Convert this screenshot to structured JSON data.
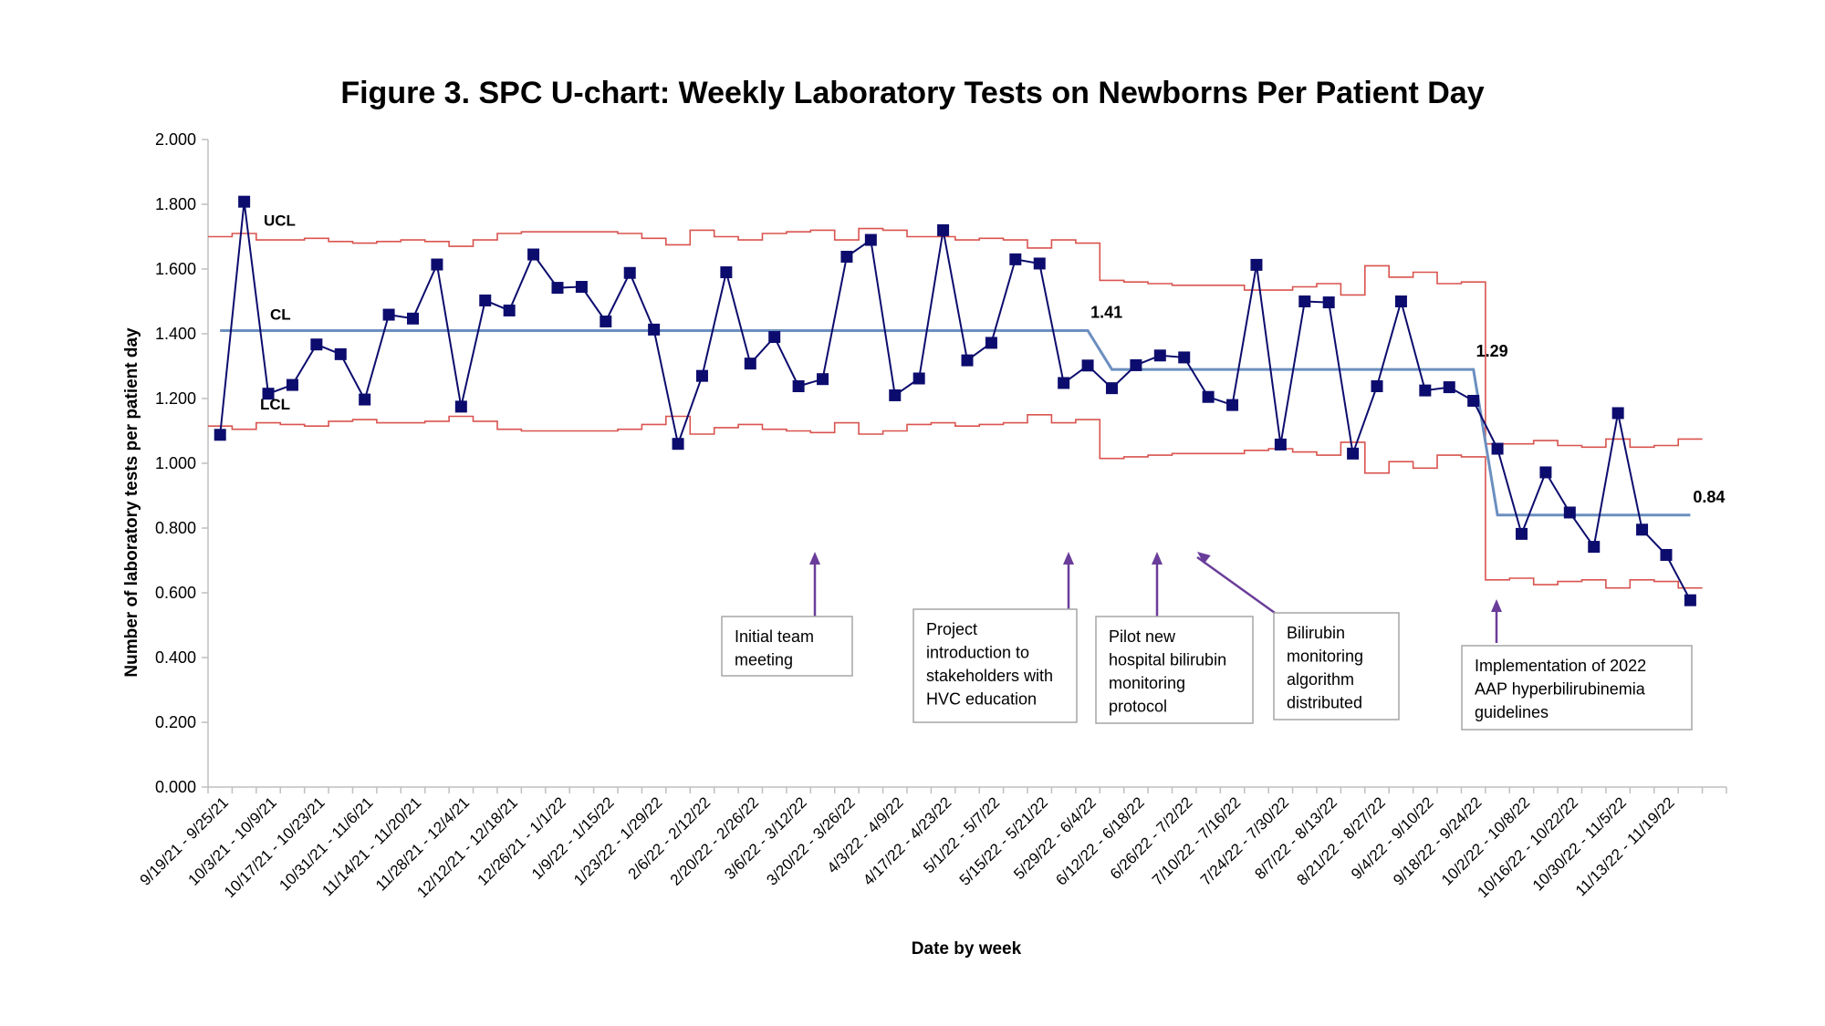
{
  "chart_data": {
    "type": "line",
    "title": "Figure 3. SPC U-chart: Weekly Laboratory Tests on Newborns Per Patient Day",
    "xlabel": "Date by week",
    "ylabel": "Number of laboratory tests per patient day",
    "ylim": [
      0,
      2
    ],
    "yticks": [
      "0.000",
      "0.200",
      "0.400",
      "0.600",
      "0.800",
      "1.000",
      "1.200",
      "1.400",
      "1.600",
      "1.800",
      "2.000"
    ],
    "week_count": 62,
    "x_tick_labels": [
      "9/19/21 - 9/25/21",
      "10/3/21 - 10/9/21",
      "10/17/21 - 10/23/21",
      "10/31/21 - 11/6/21",
      "11/14/21 - 11/20/21",
      "11/28/21 - 12/4/21",
      "12/12/21 - 12/18/21",
      "12/26/21 - 1/1/22",
      "1/9/22 - 1/15/22",
      "1/23/22 - 1/29/22",
      "2/6/22 - 2/12/22",
      "2/20/22 - 2/26/22",
      "3/6/22 - 3/12/22",
      "3/20/22 - 3/26/22",
      "4/3/22 - 4/9/22",
      "4/17/22 - 4/23/22",
      "5/1/22 - 5/7/22",
      "5/15/22 - 5/21/22",
      "5/29/22 - 6/4/22",
      "6/12/22 - 6/18/22",
      "6/26/22 - 7/2/22",
      "7/10/22 - 7/16/22",
      "7/24/22 - 7/30/22",
      "8/7/22 - 8/13/22",
      "8/21/22 - 8/27/22",
      "9/4/22 - 9/10/22",
      "9/18/22 - 9/24/22",
      "10/2/22 - 10/8/22",
      "10/16/22 - 10/22/22",
      "10/30/22 - 11/5/22",
      "11/13/22 - 11/19/22"
    ],
    "series": [
      {
        "name": "",
        "values": [
          1.088,
          1.808,
          1.215,
          1.242,
          1.367,
          1.337,
          1.197,
          1.459,
          1.447,
          1.614,
          1.175,
          1.503,
          1.472,
          1.645,
          1.542,
          1.545,
          1.438,
          1.588,
          1.413,
          1.06,
          1.27,
          1.59,
          1.308,
          1.39,
          1.238,
          1.26,
          1.638,
          1.69,
          1.21,
          1.262,
          1.72,
          1.318,
          1.372,
          1.63,
          1.617,
          1.248,
          1.302,
          1.232,
          1.303,
          1.333,
          1.327,
          1.205,
          1.18,
          1.613,
          1.058,
          1.5,
          1.497,
          1.03,
          1.238,
          1.5,
          1.225,
          1.235,
          1.193,
          1.045,
          0.782,
          0.972,
          0.848,
          0.742,
          1.155,
          0.795,
          0.717,
          0.577
        ],
        "color": "#0c0c6e"
      },
      {
        "name": "CL",
        "values": [
          1.41,
          1.41,
          1.41,
          1.41,
          1.41,
          1.41,
          1.41,
          1.41,
          1.41,
          1.41,
          1.41,
          1.41,
          1.41,
          1.41,
          1.41,
          1.41,
          1.41,
          1.41,
          1.41,
          1.41,
          1.41,
          1.41,
          1.41,
          1.41,
          1.41,
          1.41,
          1.41,
          1.41,
          1.41,
          1.41,
          1.41,
          1.41,
          1.41,
          1.41,
          1.41,
          1.41,
          1.41,
          1.29,
          1.29,
          1.29,
          1.29,
          1.29,
          1.29,
          1.29,
          1.29,
          1.29,
          1.29,
          1.29,
          1.29,
          1.29,
          1.29,
          1.29,
          1.29,
          0.84,
          0.84,
          0.84,
          0.84,
          0.84,
          0.84,
          0.84,
          0.84,
          0.84
        ],
        "color": "#6b8fbf"
      },
      {
        "name": "UCL",
        "values": [
          1.7,
          1.71,
          1.69,
          1.69,
          1.695,
          1.685,
          1.68,
          1.685,
          1.69,
          1.685,
          1.67,
          1.69,
          1.71,
          1.715,
          1.715,
          1.715,
          1.715,
          1.71,
          1.695,
          1.675,
          1.72,
          1.7,
          1.69,
          1.71,
          1.715,
          1.72,
          1.69,
          1.725,
          1.72,
          1.7,
          1.7,
          1.69,
          1.695,
          1.69,
          1.665,
          1.69,
          1.68,
          1.565,
          1.56,
          1.555,
          1.55,
          1.55,
          1.55,
          1.535,
          1.535,
          1.545,
          1.555,
          1.52,
          1.61,
          1.575,
          1.59,
          1.555,
          1.56,
          1.06,
          1.06,
          1.07,
          1.055,
          1.05,
          1.075,
          1.05,
          1.055,
          1.075
        ],
        "color": "#d9534f"
      },
      {
        "name": "LCL",
        "values": [
          1.115,
          1.105,
          1.125,
          1.12,
          1.115,
          1.13,
          1.135,
          1.125,
          1.125,
          1.13,
          1.145,
          1.13,
          1.105,
          1.1,
          1.1,
          1.1,
          1.1,
          1.105,
          1.12,
          1.145,
          1.09,
          1.11,
          1.12,
          1.105,
          1.1,
          1.095,
          1.125,
          1.09,
          1.1,
          1.12,
          1.125,
          1.115,
          1.12,
          1.125,
          1.15,
          1.125,
          1.135,
          1.015,
          1.02,
          1.025,
          1.03,
          1.03,
          1.03,
          1.04,
          1.045,
          1.035,
          1.025,
          1.065,
          0.97,
          1.005,
          0.985,
          1.025,
          1.02,
          0.64,
          0.645,
          0.625,
          0.635,
          0.64,
          0.615,
          0.64,
          0.635,
          0.615
        ],
        "color": "#d9534f"
      }
    ],
    "line_labels": {
      "ucl": "UCL",
      "cl": "CL",
      "lcl": "LCL"
    },
    "cl_value_labels": [
      {
        "text": "1.41",
        "week": 36,
        "value": 1.41
      },
      {
        "text": "1.29",
        "week": 52,
        "value": 1.29
      },
      {
        "text": "0.84",
        "week": 61,
        "value": 0.84
      }
    ],
    "annotations": [
      {
        "lines": [
          "Initial team",
          "meeting"
        ],
        "week": 24
      },
      {
        "lines": [
          "Project",
          "introduction to",
          "stakeholders with",
          "HVC education"
        ],
        "week": 35
      },
      {
        "lines": [
          "Pilot new",
          "hospital bilirubin",
          "monitoring",
          "protocol"
        ],
        "week": 38
      },
      {
        "lines": [
          "Bilirubin",
          "monitoring",
          "algorithm",
          "distributed"
        ],
        "week": 40
      },
      {
        "lines": [
          "Implementation of 2022",
          "AAP hyperbilirubinemia",
          "guidelines"
        ],
        "week": 52
      }
    ],
    "colors": {
      "data_line": "#0c0c6e",
      "marker": "#0c0c6e",
      "center_line": "#6b8fbf",
      "control_limits": "#d9534f",
      "annotation_arrow": "#6a3d9a"
    }
  }
}
